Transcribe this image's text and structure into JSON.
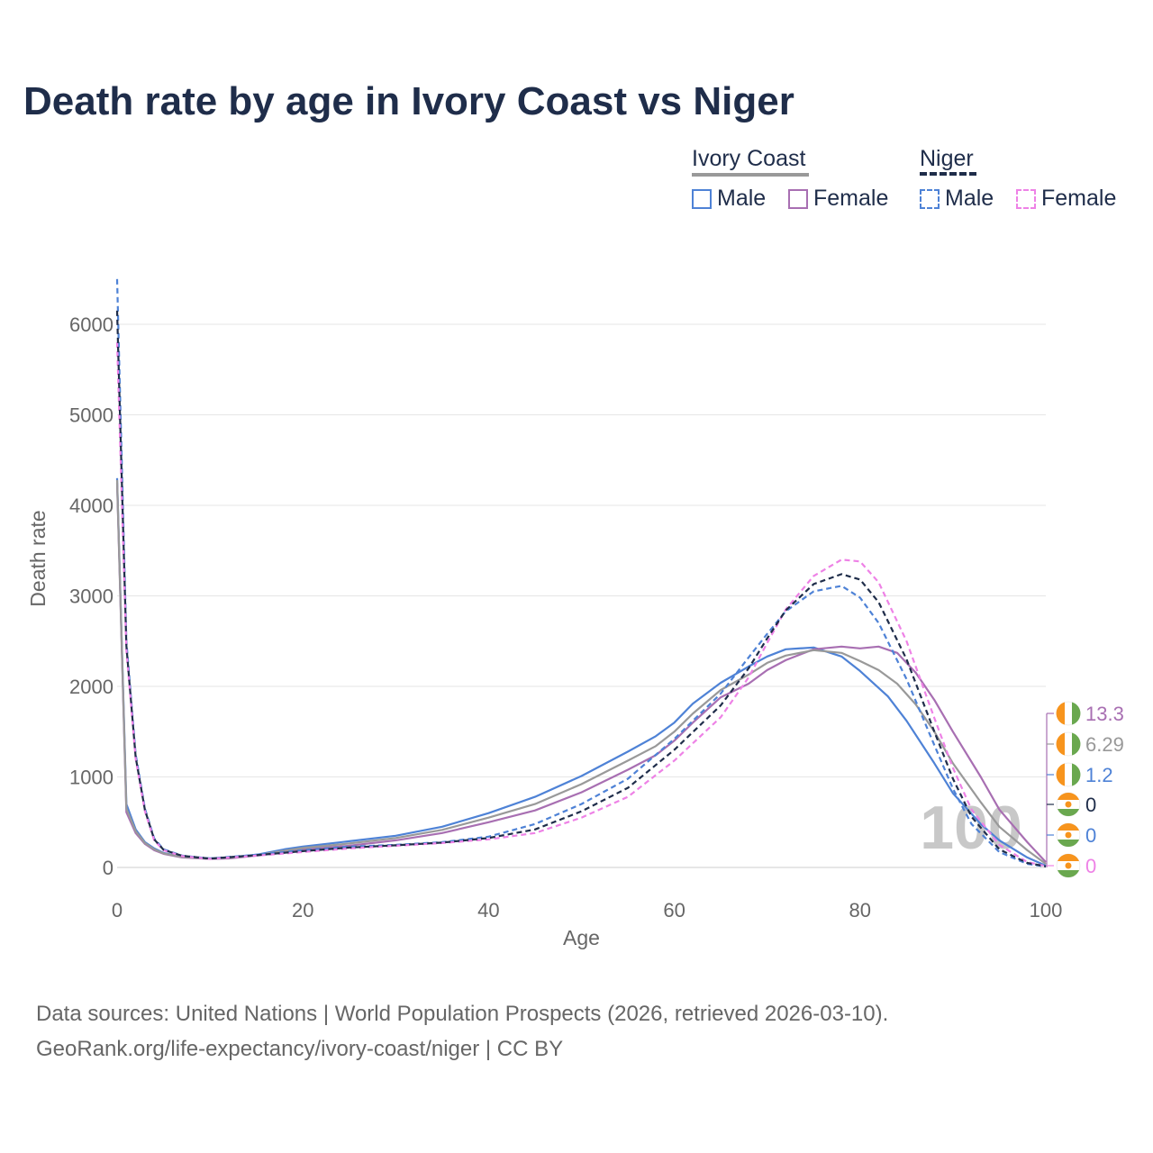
{
  "colors": {
    "ivory_male": "#4e82d6",
    "ivory_female": "#a86fb2",
    "ivory_total": "#999999",
    "niger_male": "#4e82d6",
    "niger_female": "#ee82e6",
    "niger_total": "#1f2d4a",
    "flag_orange": "#f7941d",
    "flag_green": "#6aa84f"
  },
  "legend": {
    "ivory_title": "Ivory Coast",
    "niger_title": "Niger",
    "male": "Male",
    "female": "Female"
  },
  "source": {
    "line1": "Data sources: United Nations | World Population Prospects (2026, retrieved 2026-03-10).",
    "line2": "GeoRank.org/life-expectancy/ivory-coast/niger | CC BY"
  },
  "chart_data": {
    "type": "line",
    "title": "Death rate by age in Ivory Coast vs Niger",
    "xlabel": "Age",
    "ylabel": "Death rate",
    "xlim": [
      0,
      100
    ],
    "ylim": [
      0,
      6500
    ],
    "xticks": [
      0,
      20,
      40,
      60,
      80,
      100
    ],
    "yticks": [
      0,
      1000,
      2000,
      3000,
      4000,
      5000,
      6000
    ],
    "watermark": "100",
    "series": [
      {
        "name": "Ivory Coast Male",
        "country": "Ivory Coast",
        "sex": "Male",
        "dashed": false,
        "points": [
          [
            0,
            4300
          ],
          [
            1,
            700
          ],
          [
            2,
            420
          ],
          [
            3,
            280
          ],
          [
            4,
            210
          ],
          [
            5,
            160
          ],
          [
            7,
            120
          ],
          [
            10,
            100
          ],
          [
            12,
            110
          ],
          [
            15,
            140
          ],
          [
            18,
            200
          ],
          [
            20,
            230
          ],
          [
            25,
            290
          ],
          [
            30,
            350
          ],
          [
            35,
            450
          ],
          [
            40,
            600
          ],
          [
            45,
            780
          ],
          [
            50,
            1010
          ],
          [
            55,
            1280
          ],
          [
            58,
            1450
          ],
          [
            60,
            1600
          ],
          [
            62,
            1810
          ],
          [
            65,
            2040
          ],
          [
            68,
            2220
          ],
          [
            70,
            2330
          ],
          [
            72,
            2410
          ],
          [
            75,
            2430
          ],
          [
            78,
            2330
          ],
          [
            80,
            2170
          ],
          [
            83,
            1890
          ],
          [
            85,
            1620
          ],
          [
            88,
            1150
          ],
          [
            90,
            820
          ],
          [
            93,
            480
          ],
          [
            95,
            300
          ],
          [
            98,
            110
          ],
          [
            100,
            20
          ]
        ]
      },
      {
        "name": "Ivory Coast Female",
        "country": "Ivory Coast",
        "sex": "Female",
        "dashed": false,
        "points": [
          [
            0,
            4250
          ],
          [
            1,
            610
          ],
          [
            2,
            380
          ],
          [
            3,
            260
          ],
          [
            4,
            190
          ],
          [
            5,
            150
          ],
          [
            7,
            110
          ],
          [
            10,
            95
          ],
          [
            12,
            100
          ],
          [
            15,
            130
          ],
          [
            18,
            170
          ],
          [
            20,
            200
          ],
          [
            25,
            240
          ],
          [
            30,
            300
          ],
          [
            35,
            380
          ],
          [
            40,
            500
          ],
          [
            45,
            630
          ],
          [
            50,
            830
          ],
          [
            55,
            1080
          ],
          [
            58,
            1240
          ],
          [
            60,
            1400
          ],
          [
            62,
            1600
          ],
          [
            65,
            1880
          ],
          [
            68,
            2030
          ],
          [
            70,
            2180
          ],
          [
            72,
            2290
          ],
          [
            75,
            2410
          ],
          [
            78,
            2440
          ],
          [
            80,
            2420
          ],
          [
            82,
            2440
          ],
          [
            84,
            2370
          ],
          [
            86,
            2150
          ],
          [
            88,
            1850
          ],
          [
            90,
            1500
          ],
          [
            93,
            1000
          ],
          [
            95,
            640
          ],
          [
            98,
            280
          ],
          [
            100,
            60
          ]
        ]
      },
      {
        "name": "Ivory Coast Total",
        "country": "Ivory Coast",
        "sex": "Total",
        "dashed": false,
        "points": [
          [
            0,
            4280
          ],
          [
            1,
            650
          ],
          [
            2,
            400
          ],
          [
            3,
            270
          ],
          [
            4,
            200
          ],
          [
            5,
            155
          ],
          [
            7,
            115
          ],
          [
            10,
            97
          ],
          [
            12,
            105
          ],
          [
            15,
            135
          ],
          [
            18,
            185
          ],
          [
            20,
            215
          ],
          [
            25,
            265
          ],
          [
            30,
            325
          ],
          [
            35,
            415
          ],
          [
            40,
            550
          ],
          [
            45,
            700
          ],
          [
            50,
            920
          ],
          [
            55,
            1180
          ],
          [
            58,
            1340
          ],
          [
            60,
            1500
          ],
          [
            62,
            1700
          ],
          [
            65,
            1960
          ],
          [
            68,
            2130
          ],
          [
            70,
            2260
          ],
          [
            72,
            2340
          ],
          [
            75,
            2400
          ],
          [
            78,
            2370
          ],
          [
            80,
            2280
          ],
          [
            82,
            2180
          ],
          [
            84,
            2030
          ],
          [
            86,
            1800
          ],
          [
            88,
            1500
          ],
          [
            90,
            1150
          ],
          [
            93,
            720
          ],
          [
            95,
            450
          ],
          [
            98,
            190
          ],
          [
            100,
            40
          ]
        ]
      },
      {
        "name": "Niger Male",
        "country": "Niger",
        "sex": "Male",
        "dashed": true,
        "points": [
          [
            0,
            6500
          ],
          [
            1,
            2500
          ],
          [
            2,
            1250
          ],
          [
            3,
            650
          ],
          [
            4,
            320
          ],
          [
            5,
            200
          ],
          [
            7,
            130
          ],
          [
            10,
            100
          ],
          [
            15,
            140
          ],
          [
            20,
            190
          ],
          [
            25,
            230
          ],
          [
            30,
            250
          ],
          [
            35,
            280
          ],
          [
            40,
            340
          ],
          [
            45,
            480
          ],
          [
            50,
            700
          ],
          [
            55,
            980
          ],
          [
            60,
            1420
          ],
          [
            65,
            1920
          ],
          [
            68,
            2320
          ],
          [
            70,
            2580
          ],
          [
            72,
            2830
          ],
          [
            75,
            3050
          ],
          [
            78,
            3110
          ],
          [
            80,
            2980
          ],
          [
            82,
            2700
          ],
          [
            85,
            2080
          ],
          [
            88,
            1350
          ],
          [
            90,
            870
          ],
          [
            92,
            480
          ],
          [
            95,
            170
          ],
          [
            98,
            40
          ],
          [
            100,
            10
          ]
        ]
      },
      {
        "name": "Niger Female",
        "country": "Niger",
        "sex": "Female",
        "dashed": true,
        "points": [
          [
            0,
            5800
          ],
          [
            1,
            2400
          ],
          [
            2,
            1200
          ],
          [
            3,
            620
          ],
          [
            4,
            300
          ],
          [
            5,
            190
          ],
          [
            7,
            125
          ],
          [
            10,
            95
          ],
          [
            15,
            130
          ],
          [
            20,
            170
          ],
          [
            25,
            210
          ],
          [
            30,
            240
          ],
          [
            35,
            270
          ],
          [
            40,
            310
          ],
          [
            45,
            380
          ],
          [
            50,
            550
          ],
          [
            55,
            780
          ],
          [
            60,
            1180
          ],
          [
            65,
            1660
          ],
          [
            68,
            2100
          ],
          [
            70,
            2480
          ],
          [
            72,
            2850
          ],
          [
            75,
            3220
          ],
          [
            78,
            3400
          ],
          [
            80,
            3380
          ],
          [
            82,
            3150
          ],
          [
            85,
            2500
          ],
          [
            88,
            1650
          ],
          [
            90,
            1100
          ],
          [
            92,
            640
          ],
          [
            95,
            250
          ],
          [
            98,
            60
          ],
          [
            100,
            15
          ]
        ]
      },
      {
        "name": "Niger Total",
        "country": "Niger",
        "sex": "Total",
        "dashed": true,
        "points": [
          [
            0,
            6150
          ],
          [
            1,
            2450
          ],
          [
            2,
            1220
          ],
          [
            3,
            635
          ],
          [
            4,
            310
          ],
          [
            5,
            195
          ],
          [
            7,
            128
          ],
          [
            10,
            98
          ],
          [
            15,
            135
          ],
          [
            20,
            180
          ],
          [
            25,
            220
          ],
          [
            30,
            245
          ],
          [
            35,
            275
          ],
          [
            40,
            325
          ],
          [
            45,
            420
          ],
          [
            50,
            620
          ],
          [
            55,
            880
          ],
          [
            60,
            1300
          ],
          [
            65,
            1790
          ],
          [
            68,
            2200
          ],
          [
            70,
            2530
          ],
          [
            72,
            2840
          ],
          [
            75,
            3130
          ],
          [
            78,
            3240
          ],
          [
            80,
            3180
          ],
          [
            82,
            2930
          ],
          [
            85,
            2300
          ],
          [
            88,
            1500
          ],
          [
            90,
            980
          ],
          [
            92,
            560
          ],
          [
            95,
            200
          ],
          [
            98,
            50
          ],
          [
            100,
            12
          ]
        ]
      }
    ],
    "end_labels": [
      {
        "text": "13.3",
        "country": "Ivory Coast",
        "series": "Ivory Coast Female",
        "value": 13.3
      },
      {
        "text": "6.29",
        "country": "Ivory Coast",
        "series": "Ivory Coast Total",
        "value": 6.29
      },
      {
        "text": "1.2",
        "country": "Ivory Coast",
        "series": "Ivory Coast Male",
        "value": 1.2
      },
      {
        "text": "0",
        "country": "Niger",
        "series": "Niger Total",
        "value": 0
      },
      {
        "text": "0",
        "country": "Niger",
        "series": "Niger Male",
        "value": 0
      },
      {
        "text": "0",
        "country": "Niger",
        "series": "Niger Female",
        "value": 0
      }
    ]
  }
}
